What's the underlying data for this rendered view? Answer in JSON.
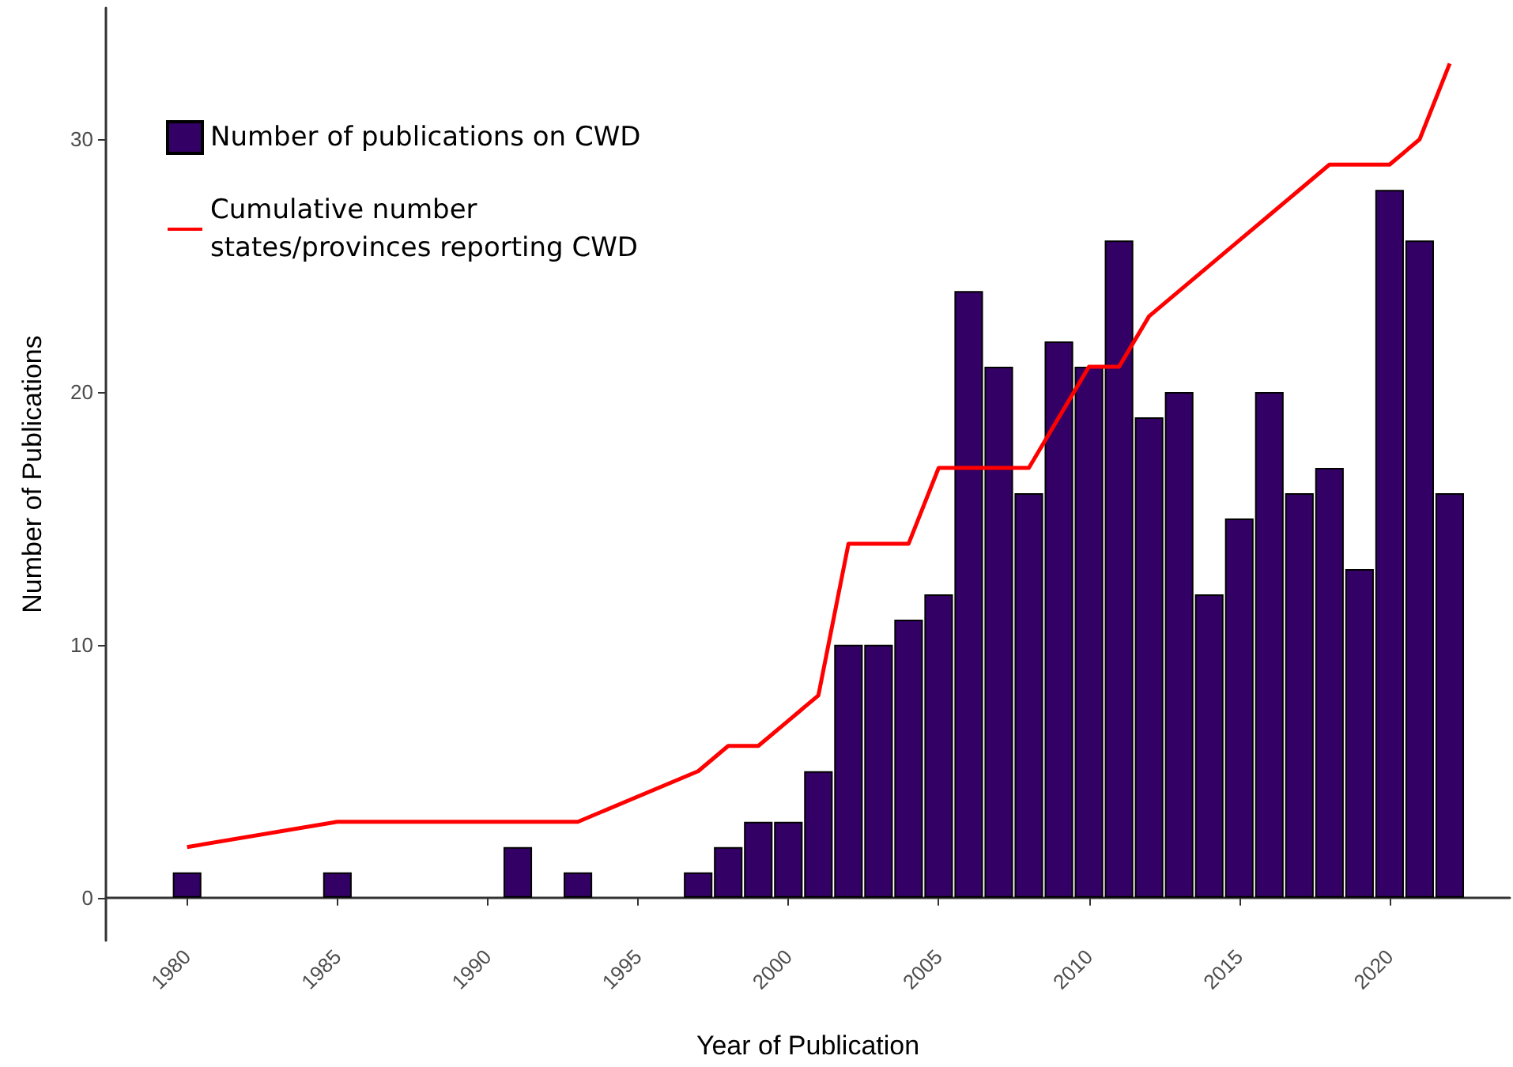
{
  "chart_data": {
    "type": "bar",
    "xlabel": "Year of Publication",
    "ylabel": "Number of Publications",
    "x": [
      1980,
      1985,
      1991,
      1993,
      1997,
      1998,
      1999,
      2000,
      2001,
      2002,
      2003,
      2004,
      2005,
      2006,
      2007,
      2008,
      2009,
      2010,
      2011,
      2012,
      2013,
      2014,
      2015,
      2016,
      2017,
      2018,
      2019,
      2020,
      2021,
      2022
    ],
    "series": [
      {
        "name": "Number of publications on CWD",
        "color": "#330066",
        "values": [
          1,
          1,
          2,
          1,
          1,
          2,
          3,
          3,
          5,
          10,
          10,
          11,
          12,
          24,
          21,
          16,
          22,
          21,
          26,
          19,
          20,
          12,
          15,
          20,
          16,
          17,
          13,
          28,
          26,
          16
        ]
      },
      {
        "name": "Cumulative number\nstates/provinces reporting CWD",
        "type": "line",
        "color": "#ff0000",
        "x": [
          1980,
          1985,
          1993,
          1997,
          1998,
          1999,
          2000,
          2001,
          2002,
          2003,
          2004,
          2005,
          2006,
          2007,
          2008,
          2009,
          2010,
          2011,
          2012,
          2013,
          2014,
          2015,
          2016,
          2017,
          2018,
          2019,
          2020,
          2021,
          2022
        ],
        "values": [
          2,
          3,
          3,
          5,
          6,
          6,
          7,
          8,
          14,
          14,
          14,
          17,
          17,
          17,
          17,
          19,
          21,
          21,
          23,
          24,
          25,
          26,
          27,
          28,
          29,
          29,
          29,
          30,
          33
        ]
      }
    ],
    "xlim": [
      1977.3,
      2024
    ],
    "xticks": [
      1980,
      1985,
      1990,
      1995,
      2000,
      2005,
      2010,
      2015,
      2020
    ],
    "ylim": [
      -1.7,
      35.2
    ],
    "yticks": [
      0,
      10,
      20,
      30
    ],
    "grid": false,
    "legend": "top left",
    "marker": "none"
  }
}
